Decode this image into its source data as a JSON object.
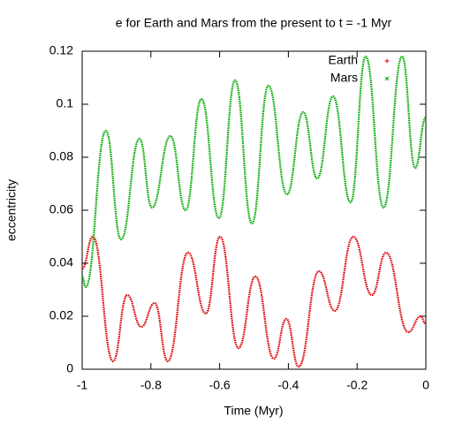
{
  "chart_data": {
    "type": "scatter",
    "title": "e for Earth and Mars from the present to t = -1 Myr",
    "xlabel": "Time (Myr)",
    "ylabel": "eccentricity",
    "xlim": [
      -1,
      0
    ],
    "ylim": [
      0,
      0.12
    ],
    "xticks": [
      -1,
      -0.8,
      -0.6,
      -0.4,
      -0.2,
      0
    ],
    "yticks": [
      0,
      0.02,
      0.04,
      0.06,
      0.08,
      0.1,
      0.12
    ],
    "legend": "top-right",
    "series": [
      {
        "name": "Earth",
        "color": "#dd0000",
        "marker": "+",
        "x": [
          -1,
          -0.969,
          -0.91,
          -0.869,
          -0.828,
          -0.789,
          -0.751,
          -0.692,
          -0.64,
          -0.599,
          -0.545,
          -0.496,
          -0.442,
          -0.406,
          -0.37,
          -0.311,
          -0.265,
          -0.211,
          -0.157,
          -0.116,
          -0.051,
          -0.015,
          0
        ],
        "values": [
          0.038,
          0.05,
          0.003,
          0.028,
          0.016,
          0.025,
          0.003,
          0.044,
          0.021,
          0.05,
          0.008,
          0.035,
          0.004,
          0.019,
          0.001,
          0.037,
          0.022,
          0.05,
          0.028,
          0.044,
          0.014,
          0.02,
          0.017
        ]
      },
      {
        "name": "Mars",
        "color": "#00aa00",
        "marker": "x",
        "x": [
          -1,
          -0.99,
          -0.931,
          -0.887,
          -0.833,
          -0.797,
          -0.743,
          -0.699,
          -0.653,
          -0.602,
          -0.555,
          -0.506,
          -0.458,
          -0.404,
          -0.357,
          -0.316,
          -0.27,
          -0.219,
          -0.175,
          -0.123,
          -0.069,
          -0.031,
          0
        ],
        "values": [
          0.035,
          0.031,
          0.09,
          0.049,
          0.087,
          0.061,
          0.088,
          0.06,
          0.102,
          0.057,
          0.109,
          0.055,
          0.107,
          0.066,
          0.097,
          0.072,
          0.103,
          0.063,
          0.118,
          0.061,
          0.118,
          0.076,
          0.095
        ]
      }
    ]
  }
}
